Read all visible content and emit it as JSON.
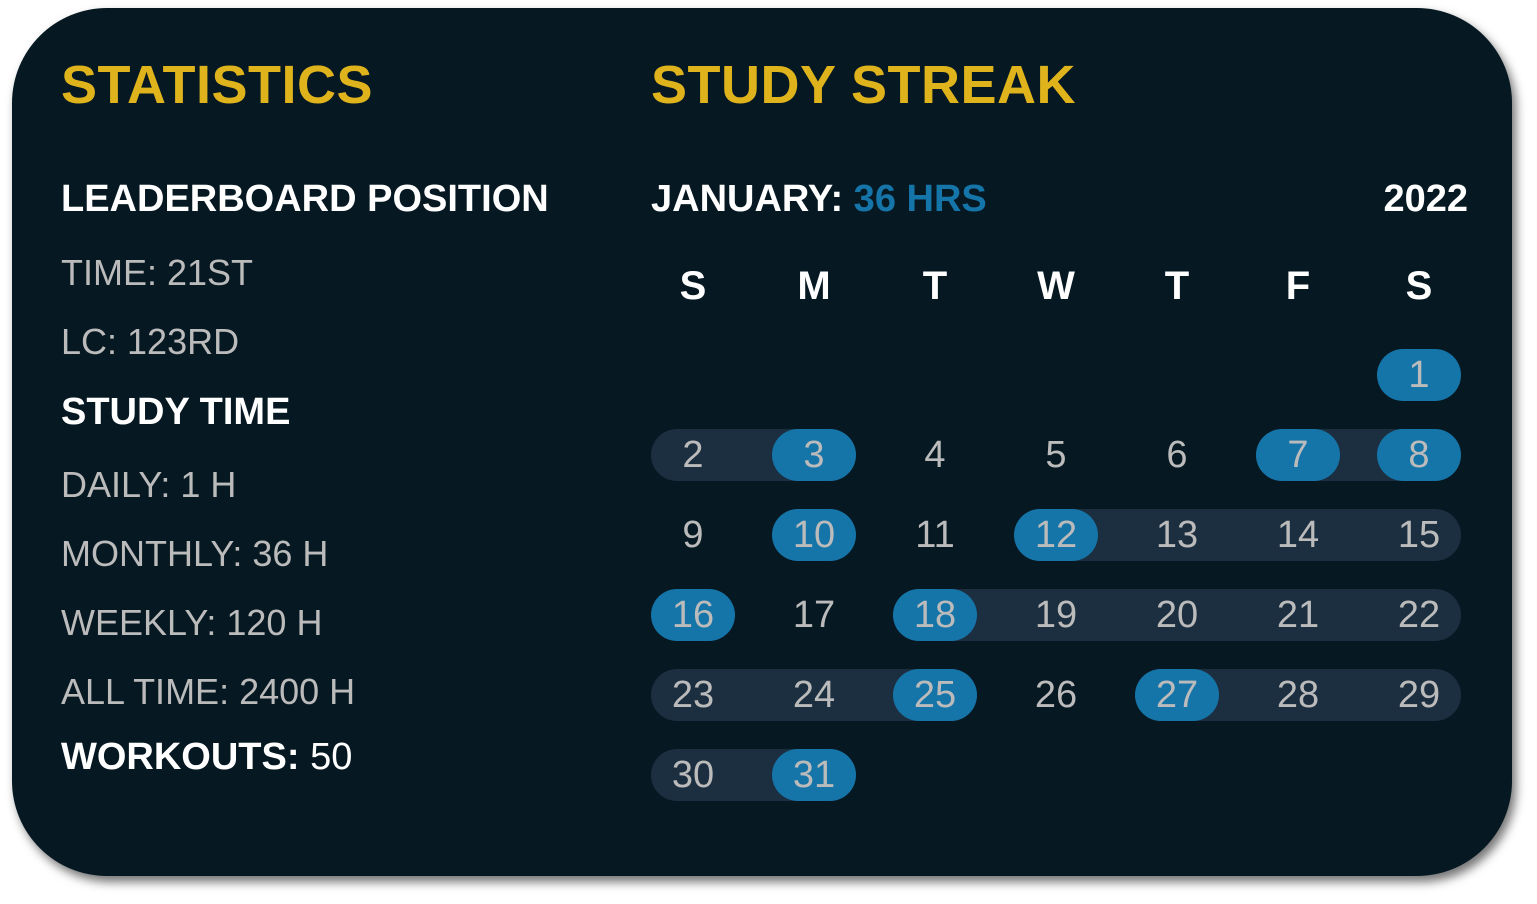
{
  "statistics": {
    "title": "STATISTICS",
    "leaderboard_heading": "LEADERBOARD POSITION",
    "time": "TIME: 21ST",
    "lc": "LC: 123RD",
    "study_time_heading": "STUDY TIME",
    "daily": "DAILY: 1 H",
    "monthly": "MONTHLY: 36 H",
    "weekly": "WEEKLY: 120 H",
    "all_time": "ALL TIME: 2400 H",
    "workouts_label": "WORKOUTS:",
    "workouts_value": " 50"
  },
  "streak": {
    "title": "STUDY STREAK",
    "month_label": "JANUARY:",
    "month_hours": " 36 HRS",
    "year": "2022",
    "weekdays": [
      "S",
      "M",
      "T",
      "W",
      "T",
      "F",
      "S"
    ],
    "first_weekday_index": 6,
    "days_in_month": 31,
    "study_days": [
      1,
      3,
      7,
      8,
      10,
      12,
      16,
      18,
      25,
      27,
      31
    ],
    "streak_ranges": [
      [
        2,
        3
      ],
      [
        7,
        8
      ],
      [
        12,
        15
      ],
      [
        18,
        22
      ],
      [
        23,
        25
      ],
      [
        27,
        29
      ],
      [
        30,
        31
      ]
    ]
  },
  "colors": {
    "background": "#061822",
    "accent_yellow": "#DFB31C",
    "accent_blue": "#1574A8",
    "streak_band": "#1C2F40",
    "muted_text": "#BBBBBB"
  }
}
